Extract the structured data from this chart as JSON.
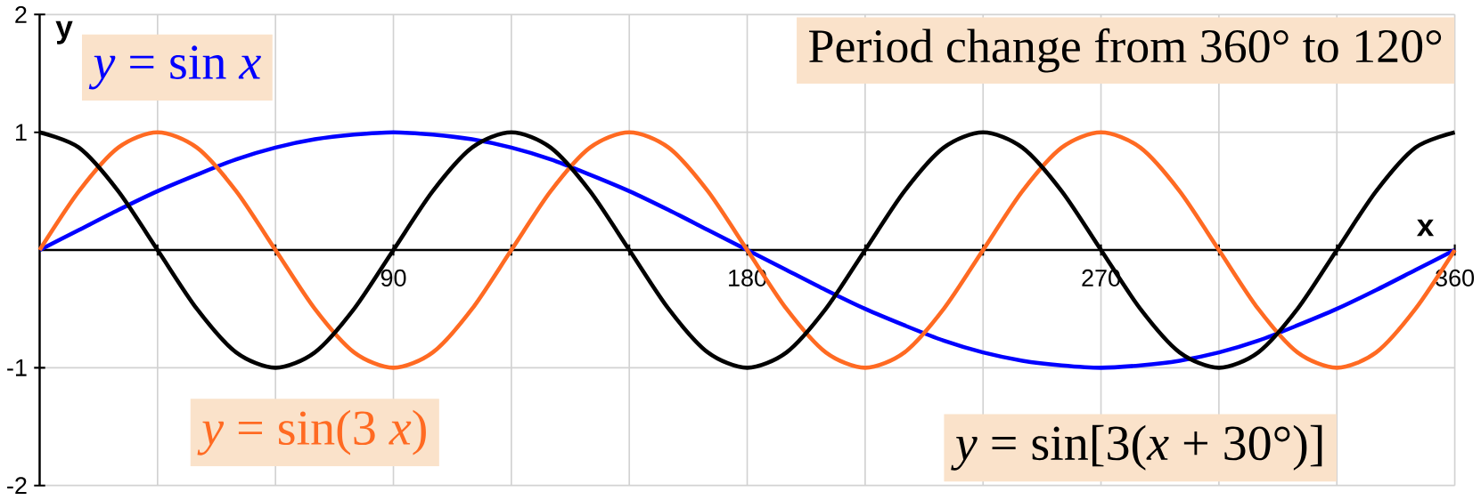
{
  "chart_data": {
    "type": "line",
    "title": "Period change from 360° to 120°",
    "xlabel": "x",
    "ylabel": "y",
    "x": [
      0,
      10,
      20,
      30,
      40,
      50,
      60,
      70,
      80,
      90,
      100,
      110,
      120,
      130,
      140,
      150,
      160,
      170,
      180,
      190,
      200,
      210,
      220,
      230,
      240,
      250,
      260,
      270,
      280,
      290,
      300,
      310,
      320,
      330,
      340,
      350,
      360
    ],
    "series": [
      {
        "name": "*y* = sin *x*",
        "color": "#0000ff",
        "values": [
          0,
          0.17,
          0.34,
          0.5,
          0.64,
          0.77,
          0.87,
          0.94,
          0.98,
          1,
          0.98,
          0.94,
          0.87,
          0.77,
          0.64,
          0.5,
          0.34,
          0.17,
          0,
          -0.17,
          -0.34,
          -0.5,
          -0.64,
          -0.77,
          -0.87,
          -0.94,
          -0.98,
          -1,
          -0.98,
          -0.94,
          -0.87,
          -0.77,
          -0.64,
          -0.5,
          -0.34,
          -0.17,
          0
        ]
      },
      {
        "name": "*y* = sin(3 *x*)",
        "color": "#ff6a22",
        "values": [
          0,
          0.5,
          0.87,
          1,
          0.87,
          0.5,
          0,
          -0.5,
          -0.87,
          -1,
          -0.87,
          -0.5,
          0,
          0.5,
          0.87,
          1,
          0.87,
          0.5,
          0,
          -0.5,
          -0.87,
          -1,
          -0.87,
          -0.5,
          0,
          0.5,
          0.87,
          1,
          0.87,
          0.5,
          0,
          -0.5,
          -0.87,
          -1,
          -0.87,
          -0.5,
          0
        ]
      },
      {
        "name": "*y* = sin[3(*x* + 30°)]",
        "color": "#000000",
        "values": [
          1,
          0.87,
          0.5,
          0,
          -0.5,
          -0.87,
          -1,
          -0.87,
          -0.5,
          0,
          0.5,
          0.87,
          1,
          0.87,
          0.5,
          0,
          -0.5,
          -0.87,
          -1,
          -0.87,
          -0.5,
          0,
          0.5,
          0.87,
          1,
          0.87,
          0.5,
          0,
          -0.5,
          -0.87,
          -1,
          -0.87,
          -0.5,
          0,
          0.5,
          0.87,
          1
        ]
      }
    ],
    "xlim": [
      0,
      360
    ],
    "ylim": [
      -2,
      2
    ],
    "xticks": [
      {
        "value": 30,
        "label": null
      },
      {
        "value": 60,
        "label": null
      },
      90,
      {
        "value": 120,
        "label": null
      },
      {
        "value": 150,
        "label": null
      },
      180,
      {
        "value": 210,
        "label": null
      },
      {
        "value": 240,
        "label": null
      },
      270,
      {
        "value": 300,
        "label": null
      },
      {
        "value": 330,
        "label": null
      },
      360
    ],
    "yticks": [
      -2,
      -1,
      1,
      2
    ],
    "grid": true,
    "marker": "none",
    "line_style": "solid"
  }
}
